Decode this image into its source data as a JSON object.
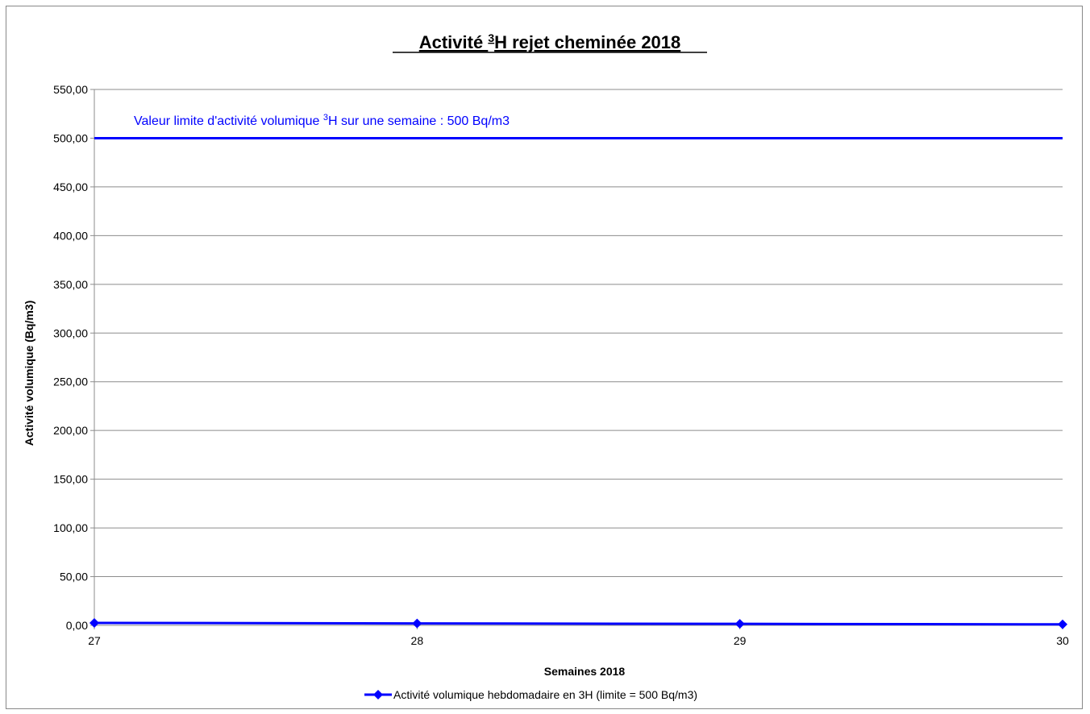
{
  "chart_data": {
    "type": "line",
    "title": {
      "prefix": "Activité ",
      "superscript": "3",
      "suffix": "H rejet cheminée 2018"
    },
    "xlabel": "Semaines 2018",
    "ylabel": "Activité volumique (Bq/m3)",
    "x": [
      27,
      28,
      29,
      30
    ],
    "x_tick_labels": [
      "27",
      "28",
      "29",
      "30"
    ],
    "xlim": [
      27,
      30
    ],
    "ylim": [
      0,
      550
    ],
    "y_ticks": [
      0,
      50,
      100,
      150,
      200,
      250,
      300,
      350,
      400,
      450,
      500,
      550
    ],
    "y_tick_labels": [
      "0,00",
      "50,00",
      "100,00",
      "150,00",
      "200,00",
      "250,00",
      "300,00",
      "350,00",
      "400,00",
      "450,00",
      "500,00",
      "550,00"
    ],
    "grid": true,
    "legend_position": "bottom",
    "series": [
      {
        "name": "Activité volumique hebdomadaire en 3H  (limite = 500 Bq/m3)",
        "values": [
          2.5,
          2.0,
          1.5,
          1.0
        ],
        "color": "#0000ff",
        "marker": "diamond"
      }
    ],
    "limit_line": {
      "value": 500,
      "color": "#0000ff",
      "annotation": {
        "prefix": "Valeur limite d'activité volumique ",
        "superscript": "3",
        "suffix": "H  sur une semaine : 500 Bq/m3"
      }
    }
  }
}
